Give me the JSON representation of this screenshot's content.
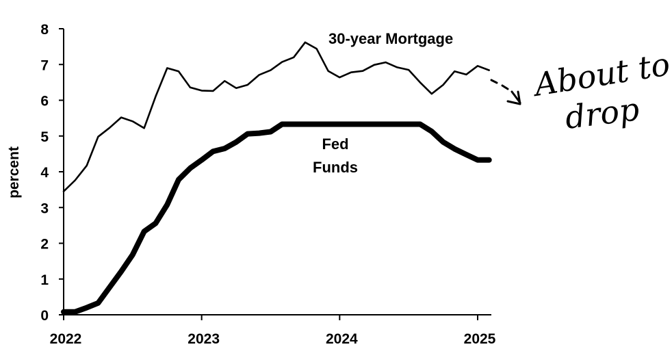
{
  "chart_data": {
    "type": "line",
    "title": "",
    "xlabel": "",
    "ylabel": "percent",
    "xlim": [
      2022.0,
      2025.2
    ],
    "ylim": [
      0,
      8
    ],
    "x_ticks": [
      2022,
      2023,
      2024,
      2025
    ],
    "x_tick_labels": [
      "2022",
      "2023",
      "2024",
      "2025"
    ],
    "y_ticks": [
      0,
      1,
      2,
      3,
      4,
      5,
      6,
      7,
      8
    ],
    "y_tick_labels": [
      "0",
      "1",
      "2",
      "3",
      "4",
      "5",
      "6",
      "7",
      "8"
    ],
    "grid": false,
    "series": [
      {
        "name": "30-year Mortgage",
        "label_lines": [
          "30-year Mortgage"
        ],
        "color": "#000000",
        "x": [
          2022.0,
          2022.083,
          2022.167,
          2022.25,
          2022.333,
          2022.417,
          2022.5,
          2022.583,
          2022.667,
          2022.75,
          2022.833,
          2022.917,
          2023.0,
          2023.083,
          2023.167,
          2023.25,
          2023.333,
          2023.417,
          2023.5,
          2023.583,
          2023.667,
          2023.75,
          2023.833,
          2023.917,
          2024.0,
          2024.083,
          2024.167,
          2024.25,
          2024.333,
          2024.417,
          2024.5,
          2024.583,
          2024.667,
          2024.75,
          2024.833,
          2024.917,
          2025.0,
          2025.083
        ],
        "values": [
          3.45,
          3.76,
          4.17,
          4.98,
          5.23,
          5.52,
          5.41,
          5.22,
          6.11,
          6.9,
          6.81,
          6.36,
          6.27,
          6.26,
          6.54,
          6.34,
          6.43,
          6.71,
          6.84,
          7.07,
          7.2,
          7.62,
          7.44,
          6.82,
          6.64,
          6.78,
          6.82,
          6.99,
          7.06,
          6.92,
          6.85,
          6.5,
          6.18,
          6.43,
          6.81,
          6.72,
          6.96,
          6.84
        ]
      },
      {
        "name": "Fed Funds",
        "label_lines": [
          "Fed",
          "Funds"
        ],
        "color": "#000000",
        "x": [
          2022.0,
          2022.083,
          2022.167,
          2022.25,
          2022.333,
          2022.417,
          2022.5,
          2022.583,
          2022.667,
          2022.75,
          2022.833,
          2022.917,
          2023.0,
          2023.083,
          2023.167,
          2023.25,
          2023.333,
          2023.417,
          2023.5,
          2023.583,
          2023.667,
          2023.75,
          2023.833,
          2023.917,
          2024.0,
          2024.083,
          2024.167,
          2024.25,
          2024.333,
          2024.417,
          2024.5,
          2024.583,
          2024.667,
          2024.75,
          2024.833,
          2024.917,
          2025.0,
          2025.083
        ],
        "values": [
          0.08,
          0.08,
          0.2,
          0.33,
          0.77,
          1.21,
          1.68,
          2.33,
          2.56,
          3.08,
          3.78,
          4.1,
          4.33,
          4.57,
          4.65,
          4.83,
          5.06,
          5.08,
          5.12,
          5.33,
          5.33,
          5.33,
          5.33,
          5.33,
          5.33,
          5.33,
          5.33,
          5.33,
          5.33,
          5.33,
          5.33,
          5.33,
          5.13,
          4.83,
          4.64,
          4.48,
          4.33,
          4.33
        ]
      }
    ],
    "annotation": {
      "lines": [
        "About to",
        "drop"
      ],
      "style": "handwritten"
    }
  }
}
